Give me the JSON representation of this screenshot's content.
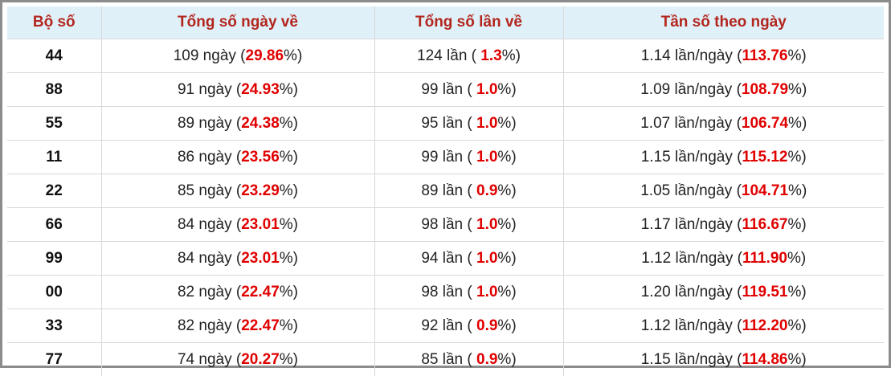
{
  "table": {
    "header": [
      "Bộ số",
      "Tổng số ngày về",
      "Tổng số lần về",
      "Tần số theo ngày"
    ],
    "rows": [
      [
        [
          "44"
        ],
        [
          "109 ngày (",
          "29.86",
          "%)"
        ],
        [
          "124 lần ( ",
          "1.3",
          "%)"
        ],
        [
          "1.14 lần/ngày (",
          "113.76",
          "%)"
        ]
      ],
      [
        [
          "88"
        ],
        [
          "91 ngày (",
          "24.93",
          "%)"
        ],
        [
          "99 lần ( ",
          "1.0",
          "%)"
        ],
        [
          "1.09 lần/ngày (",
          "108.79",
          "%)"
        ]
      ],
      [
        [
          "55"
        ],
        [
          "89 ngày (",
          "24.38",
          "%)"
        ],
        [
          "95 lần ( ",
          "1.0",
          "%)"
        ],
        [
          "1.07 lần/ngày (",
          "106.74",
          "%)"
        ]
      ],
      [
        [
          "11"
        ],
        [
          "86 ngày (",
          "23.56",
          "%)"
        ],
        [
          "99 lần ( ",
          "1.0",
          "%)"
        ],
        [
          "1.15 lần/ngày (",
          "115.12",
          "%)"
        ]
      ],
      [
        [
          "22"
        ],
        [
          "85 ngày (",
          "23.29",
          "%)"
        ],
        [
          "89 lần ( ",
          "0.9",
          "%)"
        ],
        [
          "1.05 lần/ngày (",
          "104.71",
          "%)"
        ]
      ],
      [
        [
          "66"
        ],
        [
          "84 ngày (",
          "23.01",
          "%)"
        ],
        [
          "98 lần ( ",
          "1.0",
          "%)"
        ],
        [
          "1.17 lần/ngày (",
          "116.67",
          "%)"
        ]
      ],
      [
        [
          "99"
        ],
        [
          "84 ngày (",
          "23.01",
          "%)"
        ],
        [
          "94 lần ( ",
          "1.0",
          "%)"
        ],
        [
          "1.12 lần/ngày (",
          "111.90",
          "%)"
        ]
      ],
      [
        [
          "00"
        ],
        [
          "82 ngày (",
          "22.47",
          "%)"
        ],
        [
          "98 lần ( ",
          "1.0",
          "%)"
        ],
        [
          "1.20 lần/ngày (",
          "119.51",
          "%)"
        ]
      ],
      [
        [
          "33"
        ],
        [
          "82 ngày (",
          "22.47",
          "%)"
        ],
        [
          "92 lần ( ",
          "0.9",
          "%)"
        ],
        [
          "1.12 lần/ngày (",
          "112.20",
          "%)"
        ]
      ],
      [
        [
          "77"
        ],
        [
          "74 ngày (",
          "20.27",
          "%)"
        ],
        [
          "85 lần ( ",
          "0.9",
          "%)"
        ],
        [
          "1.15 lần/ngày (",
          "114.86",
          "%)"
        ]
      ]
    ]
  }
}
